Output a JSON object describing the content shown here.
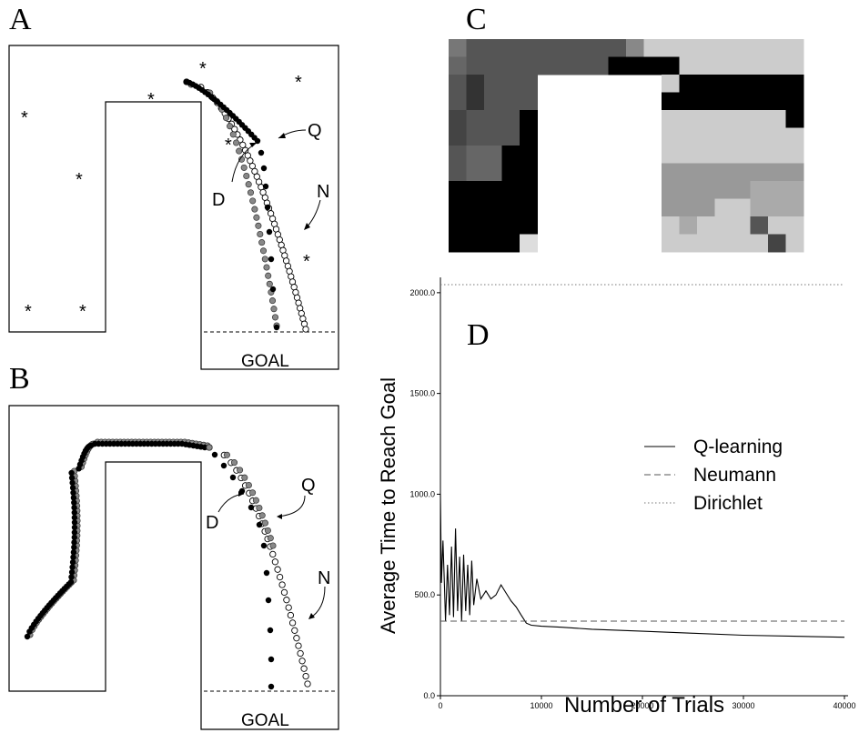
{
  "panels": {
    "a": {
      "letter": "A",
      "goal": "GOAL",
      "labels": {
        "d": "D",
        "q": "Q",
        "n": "N"
      }
    },
    "b": {
      "letter": "B",
      "goal": "GOAL",
      "labels": {
        "d": "D",
        "q": "Q",
        "n": "N"
      }
    },
    "c": {
      "letter": "C"
    },
    "d": {
      "letter": "D"
    }
  },
  "markers": {
    "dirichlet": "filled-black-circle",
    "neumann": "open-circle",
    "qlearning": "filled-gray-circle",
    "obstacle": "asterisk"
  },
  "chart_data": {
    "type": "line",
    "xlabel": "Number of Trials",
    "ylabel": "Average Time to Reach Goal",
    "xlim": [
      0,
      40000
    ],
    "ylim": [
      0,
      2040
    ],
    "x_ticks": [
      "0",
      "10000",
      "20000",
      "30000",
      "40000"
    ],
    "y_ticks": [
      "0.0",
      "500.0",
      "1000.0",
      "1500.0",
      "2000.0"
    ],
    "legend_position": "upper-right",
    "series": [
      {
        "name": "Q-learning",
        "style": "solid",
        "color": "#000000",
        "x": [
          0,
          100,
          250,
          400,
          500,
          700,
          900,
          1100,
          1300,
          1500,
          1700,
          1900,
          2100,
          2300,
          2500,
          2700,
          2900,
          3100,
          3300,
          3600,
          4000,
          4500,
          5000,
          5500,
          6000,
          6500,
          7000,
          7500,
          8000,
          8500,
          9000,
          10000,
          12000,
          15000,
          20000,
          25000,
          30000,
          35000,
          40000
        ],
        "y": [
          1000,
          560,
          770,
          550,
          370,
          650,
          400,
          740,
          390,
          830,
          420,
          690,
          370,
          700,
          420,
          650,
          400,
          670,
          450,
          580,
          480,
          520,
          480,
          500,
          550,
          510,
          470,
          440,
          400,
          360,
          350,
          345,
          340,
          330,
          320,
          310,
          300,
          295,
          290
        ]
      },
      {
        "name": "Neumann",
        "style": "dashed",
        "color": "#555555",
        "x": [
          0,
          40000
        ],
        "y": [
          370,
          370
        ]
      },
      {
        "name": "Dirichlet",
        "style": "dotted",
        "color": "#777777",
        "x": [
          0,
          40000
        ],
        "y": [
          2040,
          2040
        ]
      }
    ]
  }
}
